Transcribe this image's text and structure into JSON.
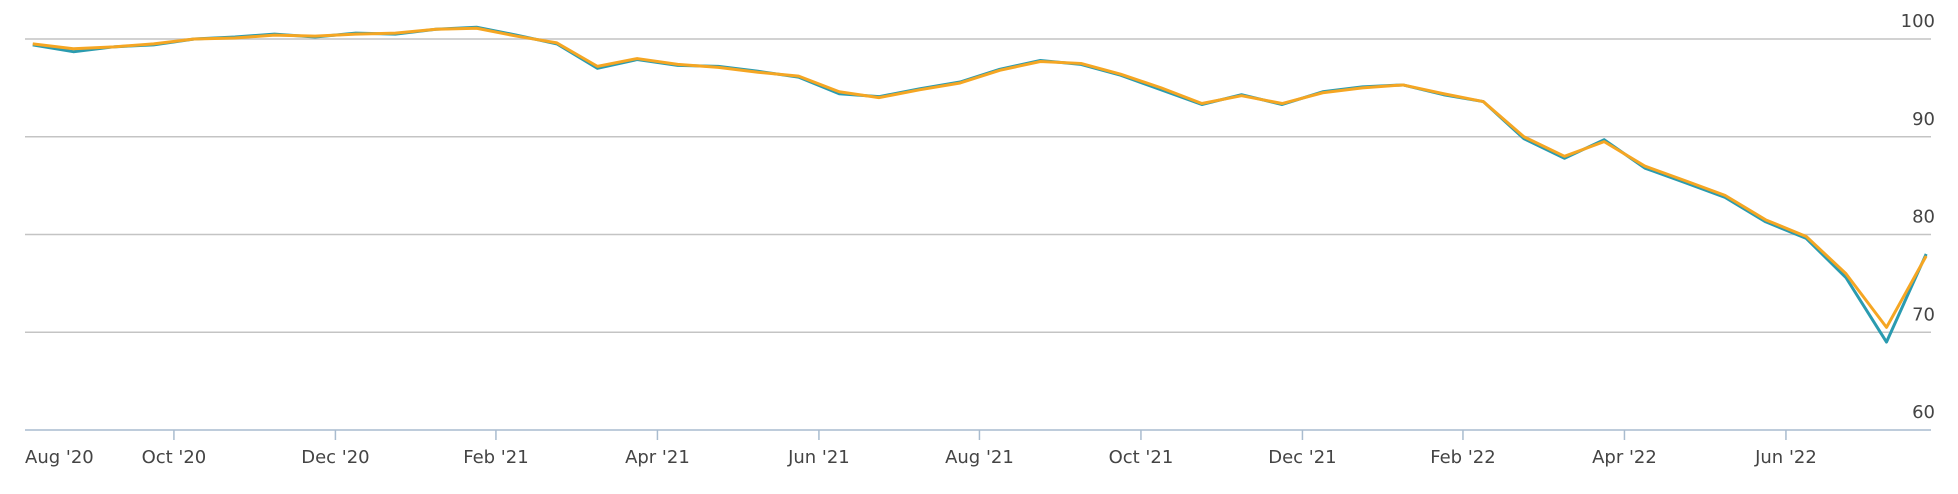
{
  "chart_data": {
    "type": "line",
    "x": [
      2020.604,
      2020.646,
      2020.688,
      2020.729,
      2020.771,
      2020.813,
      2020.854,
      2020.896,
      2020.938,
      2020.979,
      2021.021,
      2021.063,
      2021.104,
      2021.146,
      2021.188,
      2021.229,
      2021.271,
      2021.313,
      2021.354,
      2021.396,
      2021.438,
      2021.479,
      2021.521,
      2021.563,
      2021.604,
      2021.646,
      2021.688,
      2021.729,
      2021.771,
      2021.813,
      2021.854,
      2021.896,
      2021.938,
      2021.979,
      2022.021,
      2022.063,
      2022.104,
      2022.146,
      2022.188,
      2022.229,
      2022.271,
      2022.313,
      2022.354,
      2022.396,
      2022.438,
      2022.479,
      2022.521,
      2022.562
    ],
    "series": [
      {
        "color": "#2a9bb0",
        "values": [
          99.4,
          98.7,
          99.2,
          99.4,
          100.0,
          100.2,
          100.5,
          100.2,
          100.6,
          100.5,
          101.0,
          101.2,
          100.4,
          99.5,
          97.0,
          97.9,
          97.3,
          97.2,
          96.7,
          96.1,
          94.4,
          94.1,
          94.9,
          95.6,
          96.9,
          97.8,
          97.4,
          96.3,
          94.8,
          93.3,
          94.3,
          93.3,
          94.6,
          95.1,
          95.3,
          94.3,
          93.6,
          89.8,
          87.8,
          89.7,
          86.8,
          85.3,
          83.8,
          81.3,
          79.6,
          75.6,
          69.0,
          78.0
        ]
      },
      {
        "color": "#f5a623",
        "values": [
          99.5,
          99.0,
          99.2,
          99.5,
          100.0,
          100.1,
          100.4,
          100.3,
          100.5,
          100.6,
          101.0,
          101.1,
          100.3,
          99.6,
          97.2,
          98.0,
          97.4,
          97.1,
          96.6,
          96.2,
          94.6,
          94.0,
          94.8,
          95.5,
          96.8,
          97.7,
          97.5,
          96.4,
          95.0,
          93.4,
          94.2,
          93.4,
          94.5,
          95.0,
          95.3,
          94.4,
          93.6,
          90.0,
          88.0,
          89.5,
          87.0,
          85.5,
          84.0,
          81.5,
          79.8,
          76.0,
          70.5,
          77.8
        ]
      }
    ],
    "xlim": [
      2020.596,
      2022.567
    ],
    "xticks": [
      {
        "value": 2020.583,
        "label": "Aug '20"
      },
      {
        "value": 2020.75,
        "label": "Oct '20"
      },
      {
        "value": 2020.917,
        "label": "Dec '20"
      },
      {
        "value": 2021.083,
        "label": "Feb '21"
      },
      {
        "value": 2021.25,
        "label": "Apr '21"
      },
      {
        "value": 2021.417,
        "label": "Jun '21"
      },
      {
        "value": 2021.583,
        "label": "Aug '21"
      },
      {
        "value": 2021.75,
        "label": "Oct '21"
      },
      {
        "value": 2021.917,
        "label": "Dec '21"
      },
      {
        "value": 2022.083,
        "label": "Feb '22"
      },
      {
        "value": 2022.25,
        "label": "Apr '22"
      },
      {
        "value": 2022.417,
        "label": "Jun '22"
      }
    ],
    "ylim": [
      60,
      100
    ],
    "yticks": [
      60,
      70,
      80,
      90,
      100
    ],
    "grid": true
  }
}
